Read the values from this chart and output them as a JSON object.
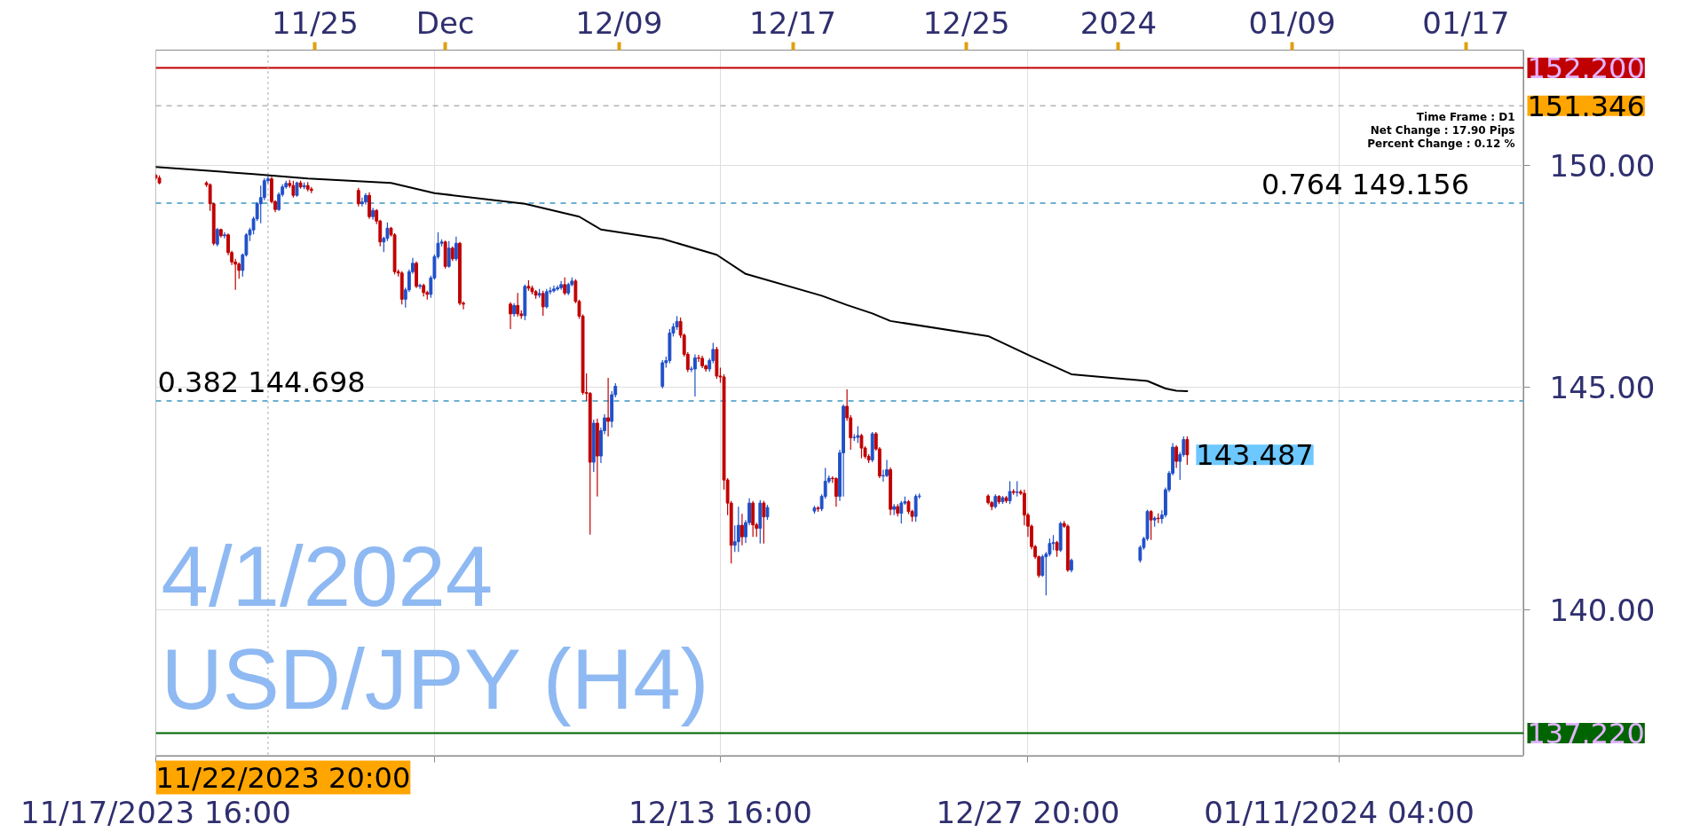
{
  "chart_data": {
    "type": "candlestick",
    "title": "USD/JPY (H4)",
    "subtitle": "4/1/2024",
    "x": [
      "2023-11-17T16:00",
      "2023-11-17T20:00",
      "2023-11-20T00:00",
      "2023-11-20T04:00",
      "2023-11-20T08:00",
      "2023-11-20T12:00",
      "2023-11-20T16:00",
      "2023-11-20T20:00",
      "2023-11-21T00:00",
      "2023-11-21T04:00",
      "2023-11-21T08:00",
      "2023-11-21T12:00",
      "2023-11-21T16:00",
      "2023-11-21T20:00",
      "2023-11-22T00:00",
      "2023-11-22T04:00",
      "2023-11-22T08:00",
      "2023-11-22T12:00",
      "2023-11-22T16:00",
      "2023-11-22T20:00",
      "2023-11-23T00:00",
      "2023-11-23T04:00",
      "2023-11-23T08:00",
      "2023-11-23T12:00",
      "2023-11-23T16:00",
      "2023-11-23T20:00",
      "2023-11-24T00:00",
      "2023-11-24T04:00",
      "2023-11-24T08:00",
      "2023-11-24T12:00",
      "2023-11-24T16:00",
      "2023-11-24T20:00",
      "2023-11-27T00:00",
      "2023-11-27T04:00",
      "2023-11-27T08:00",
      "2023-11-27T12:00",
      "2023-11-27T16:00",
      "2023-11-27T20:00",
      "2023-11-28T00:00",
      "2023-11-28T04:00",
      "2023-11-28T08:00",
      "2023-11-28T12:00",
      "2023-11-28T16:00",
      "2023-11-28T20:00",
      "2023-11-29T00:00",
      "2023-11-29T04:00",
      "2023-11-29T08:00",
      "2023-11-29T12:00",
      "2023-11-29T16:00",
      "2023-11-29T20:00",
      "2023-11-30T00:00",
      "2023-11-30T04:00",
      "2023-11-30T08:00",
      "2023-11-30T12:00",
      "2023-11-30T16:00",
      "2023-11-30T20:00",
      "2023-12-01T00:00",
      "2023-12-01T04:00",
      "2023-12-01T08:00",
      "2023-12-01T12:00",
      "2023-12-01T16:00",
      "2023-12-01T20:00",
      "2023-12-04T00:00",
      "2023-12-04T04:00",
      "2023-12-04T08:00",
      "2023-12-04T12:00",
      "2023-12-04T16:00",
      "2023-12-04T20:00",
      "2023-12-05T00:00",
      "2023-12-05T04:00",
      "2023-12-05T08:00",
      "2023-12-05T12:00",
      "2023-12-05T16:00",
      "2023-12-05T20:00",
      "2023-12-06T00:00",
      "2023-12-06T04:00",
      "2023-12-06T08:00",
      "2023-12-06T12:00",
      "2023-12-06T16:00",
      "2023-12-06T20:00",
      "2023-12-07T00:00",
      "2023-12-07T04:00",
      "2023-12-07T08:00",
      "2023-12-07T12:00",
      "2023-12-07T16:00",
      "2023-12-07T20:00",
      "2023-12-08T00:00",
      "2023-12-08T04:00",
      "2023-12-08T08:00",
      "2023-12-08T12:00",
      "2023-12-08T16:00",
      "2023-12-08T20:00",
      "2023-12-11T00:00",
      "2023-12-11T04:00",
      "2023-12-11T08:00",
      "2023-12-11T12:00",
      "2023-12-11T16:00",
      "2023-12-11T20:00",
      "2023-12-12T00:00",
      "2023-12-12T04:00",
      "2023-12-12T08:00",
      "2023-12-12T12:00",
      "2023-12-12T16:00",
      "2023-12-12T20:00",
      "2023-12-13T00:00",
      "2023-12-13T04:00",
      "2023-12-13T08:00",
      "2023-12-13T12:00",
      "2023-12-13T16:00",
      "2023-12-13T20:00",
      "2023-12-14T00:00",
      "2023-12-14T04:00",
      "2023-12-14T08:00",
      "2023-12-14T12:00",
      "2023-12-14T16:00",
      "2023-12-14T20:00",
      "2023-12-15T00:00",
      "2023-12-15T04:00",
      "2023-12-15T08:00",
      "2023-12-15T12:00",
      "2023-12-15T16:00",
      "2023-12-15T20:00",
      "2023-12-18T00:00",
      "2023-12-18T04:00",
      "2023-12-18T08:00",
      "2023-12-18T12:00",
      "2023-12-18T16:00",
      "2023-12-18T20:00",
      "2023-12-19T00:00",
      "2023-12-19T04:00",
      "2023-12-19T08:00",
      "2023-12-19T12:00",
      "2023-12-19T16:00",
      "2023-12-19T20:00",
      "2023-12-20T00:00",
      "2023-12-20T04:00",
      "2023-12-20T08:00",
      "2023-12-20T12:00",
      "2023-12-20T16:00",
      "2023-12-20T20:00",
      "2023-12-21T00:00",
      "2023-12-21T04:00",
      "2023-12-21T08:00",
      "2023-12-21T12:00",
      "2023-12-21T16:00",
      "2023-12-21T20:00",
      "2023-12-22T00:00",
      "2023-12-22T04:00",
      "2023-12-22T08:00",
      "2023-12-22T12:00",
      "2023-12-22T16:00",
      "2023-12-22T20:00",
      "2023-12-26T00:00",
      "2023-12-26T04:00",
      "2023-12-26T08:00",
      "2023-12-26T12:00",
      "2023-12-26T16:00",
      "2023-12-26T20:00",
      "2023-12-27T00:00",
      "2023-12-27T04:00",
      "2023-12-27T08:00",
      "2023-12-27T12:00",
      "2023-12-27T16:00",
      "2023-12-27T20:00",
      "2023-12-28T00:00",
      "2023-12-28T04:00",
      "2023-12-28T08:00",
      "2023-12-28T12:00",
      "2023-12-28T16:00",
      "2023-12-28T20:00",
      "2023-12-29T00:00",
      "2023-12-29T04:00",
      "2023-12-29T08:00",
      "2023-12-29T12:00",
      "2023-12-29T16:00",
      "2023-12-29T20:00",
      "2024-01-02T00:00",
      "2024-01-02T04:00",
      "2024-01-02T08:00",
      "2024-01-02T12:00",
      "2024-01-02T16:00",
      "2024-01-02T20:00",
      "2024-01-03T00:00",
      "2024-01-03T04:00",
      "2024-01-03T08:00",
      "2024-01-03T12:00",
      "2024-01-03T16:00",
      "2024-01-03T20:00",
      "2024-01-04T00:00",
      "2024-01-04T04:00"
    ],
    "ohlc": [
      [
        149.78,
        149.82,
        149.68,
        149.72
      ],
      [
        149.72,
        149.78,
        149.58,
        149.61
      ],
      [
        149.61,
        149.65,
        149.52,
        149.57
      ],
      [
        149.57,
        149.6,
        148.98,
        149.14
      ],
      [
        149.14,
        149.16,
        148.2,
        148.25
      ],
      [
        148.23,
        148.6,
        148.18,
        148.56
      ],
      [
        148.56,
        148.58,
        148.38,
        148.42
      ],
      [
        148.42,
        148.5,
        148.36,
        148.44
      ],
      [
        148.44,
        148.47,
        147.98,
        148.04
      ],
      [
        148.04,
        148.08,
        147.76,
        147.83
      ],
      [
        147.83,
        147.9,
        147.2,
        147.78
      ],
      [
        147.78,
        147.82,
        147.45,
        147.64
      ],
      [
        147.64,
        148.02,
        147.5,
        147.99
      ],
      [
        147.99,
        148.48,
        147.95,
        148.44
      ],
      [
        148.44,
        148.6,
        148.3,
        148.55
      ],
      [
        148.55,
        148.85,
        148.45,
        148.8
      ],
      [
        148.8,
        149.18,
        148.75,
        149.14
      ],
      [
        149.14,
        149.55,
        148.7,
        149.28
      ],
      [
        149.28,
        149.72,
        149.22,
        149.66
      ],
      [
        149.66,
        149.78,
        149.6,
        149.7
      ],
      [
        149.7,
        149.75,
        149.15,
        149.19
      ],
      [
        149.19,
        149.22,
        148.95,
        149.01
      ],
      [
        149.01,
        149.4,
        148.98,
        149.35
      ],
      [
        149.35,
        149.58,
        149.3,
        149.52
      ],
      [
        149.52,
        149.66,
        149.48,
        149.6
      ],
      [
        149.6,
        149.68,
        149.5,
        149.55
      ],
      [
        149.55,
        149.66,
        149.28,
        149.33
      ],
      [
        149.33,
        149.64,
        149.3,
        149.61
      ],
      [
        149.61,
        149.66,
        149.48,
        149.52
      ],
      [
        149.52,
        149.62,
        149.47,
        149.55
      ],
      [
        149.55,
        149.63,
        149.42,
        149.47
      ],
      [
        149.47,
        149.52,
        149.38,
        149.44
      ],
      [
        149.44,
        149.5,
        149.08,
        149.14
      ],
      [
        149.14,
        149.28,
        149.08,
        149.18
      ],
      [
        149.18,
        149.38,
        149.12,
        149.33
      ],
      [
        149.33,
        149.4,
        148.8,
        148.85
      ],
      [
        148.85,
        149.05,
        148.78,
        148.99
      ],
      [
        148.99,
        149.02,
        148.68,
        148.75
      ],
      [
        148.75,
        148.78,
        148.18,
        148.28
      ],
      [
        148.28,
        148.4,
        148.05,
        148.36
      ],
      [
        148.36,
        148.72,
        148.3,
        148.59
      ],
      [
        148.59,
        148.62,
        148.4,
        148.44
      ],
      [
        148.44,
        148.48,
        147.55,
        147.61
      ],
      [
        147.61,
        147.66,
        147.5,
        147.58
      ],
      [
        147.58,
        147.62,
        146.87,
        146.99
      ],
      [
        146.99,
        147.25,
        146.8,
        147.2
      ],
      [
        147.2,
        147.66,
        147.15,
        147.61
      ],
      [
        147.61,
        147.92,
        147.56,
        147.8
      ],
      [
        147.8,
        147.84,
        147.24,
        147.28
      ],
      [
        147.28,
        147.34,
        147.22,
        147.3
      ],
      [
        147.3,
        147.34,
        147.05,
        147.14
      ],
      [
        147.14,
        147.18,
        146.98,
        147.1
      ],
      [
        147.1,
        147.52,
        147.02,
        147.47
      ],
      [
        147.47,
        148.0,
        147.43,
        147.95
      ],
      [
        147.95,
        148.5,
        147.9,
        148.25
      ],
      [
        148.25,
        148.34,
        148.18,
        148.28
      ],
      [
        148.28,
        148.31,
        147.68,
        147.73
      ],
      [
        147.73,
        148.3,
        147.7,
        148.14
      ],
      [
        148.14,
        148.18,
        147.85,
        147.9
      ],
      [
        147.9,
        148.4,
        147.85,
        148.25
      ],
      [
        148.25,
        148.28,
        146.85,
        146.9
      ],
      [
        146.9,
        146.94,
        146.76,
        146.88
      ],
      [
        146.88,
        146.92,
        146.32,
        146.66
      ],
      [
        146.66,
        146.9,
        146.6,
        146.85
      ],
      [
        146.85,
        147.13,
        146.6,
        146.66
      ],
      [
        146.66,
        146.74,
        146.55,
        146.62
      ],
      [
        146.62,
        147.32,
        146.52,
        147.28
      ],
      [
        147.28,
        147.42,
        147.18,
        147.24
      ],
      [
        147.24,
        147.3,
        147.1,
        147.16
      ],
      [
        147.16,
        147.2,
        147.0,
        147.08
      ],
      [
        147.08,
        147.22,
        147.02,
        147.12
      ],
      [
        147.12,
        147.18,
        146.62,
        146.82
      ],
      [
        146.82,
        147.22,
        146.78,
        147.16
      ],
      [
        147.16,
        147.26,
        147.1,
        147.18
      ],
      [
        147.18,
        147.3,
        147.14,
        147.22
      ],
      [
        147.22,
        147.3,
        147.18,
        147.25
      ],
      [
        147.25,
        147.4,
        147.2,
        147.32
      ],
      [
        147.32,
        147.48,
        147.08,
        147.13
      ],
      [
        147.13,
        147.36,
        147.08,
        147.32
      ],
      [
        147.32,
        147.48,
        147.28,
        147.4
      ],
      [
        147.4,
        147.44,
        146.9,
        146.94
      ],
      [
        146.94,
        146.98,
        146.55,
        146.61
      ],
      [
        146.61,
        146.65,
        144.84,
        144.89
      ],
      [
        144.89,
        145.32,
        144.7,
        144.87
      ],
      [
        144.87,
        144.9,
        141.69,
        143.32
      ],
      [
        143.32,
        144.28,
        143.1,
        144.2
      ],
      [
        144.2,
        144.3,
        142.55,
        143.46
      ],
      [
        143.46,
        144.1,
        143.3,
        144.03
      ],
      [
        144.03,
        144.4,
        143.95,
        144.32
      ],
      [
        144.32,
        145.22,
        143.9,
        144.24
      ],
      [
        144.24,
        144.92,
        144.1,
        144.84
      ],
      [
        144.84,
        145.1,
        144.78,
        145.03
      ],
      [
        145.03,
        145.62,
        144.98,
        145.56
      ],
      [
        145.56,
        145.7,
        145.45,
        145.61
      ],
      [
        145.61,
        146.32,
        145.55,
        146.23
      ],
      [
        146.23,
        146.45,
        146.15,
        146.37
      ],
      [
        146.37,
        146.61,
        146.3,
        146.49
      ],
      [
        146.49,
        146.58,
        146.12,
        146.18
      ],
      [
        146.18,
        146.22,
        145.7,
        145.75
      ],
      [
        145.75,
        145.8,
        145.35,
        145.41
      ],
      [
        145.41,
        145.48,
        145.35,
        145.42
      ],
      [
        145.42,
        145.75,
        144.8,
        145.67
      ],
      [
        145.67,
        145.74,
        145.58,
        145.66
      ],
      [
        145.66,
        145.72,
        145.44,
        145.49
      ],
      [
        145.49,
        145.52,
        145.36,
        145.42
      ],
      [
        145.42,
        145.66,
        145.36,
        145.61
      ],
      [
        145.61,
        146.01,
        145.55,
        145.86
      ],
      [
        145.86,
        145.92,
        145.2,
        145.26
      ],
      [
        145.26,
        145.45,
        145.11,
        145.24
      ],
      [
        145.24,
        145.3,
        142.7,
        142.92
      ],
      [
        142.92,
        142.96,
        142.13,
        142.4
      ],
      [
        142.4,
        142.45,
        141.04,
        141.45
      ],
      [
        141.45,
        141.9,
        141.3,
        141.53
      ],
      [
        141.53,
        142.32,
        141.3,
        141.9
      ],
      [
        141.9,
        142.16,
        141.45,
        141.64
      ],
      [
        141.64,
        142.02,
        141.5,
        141.96
      ],
      [
        141.96,
        142.51,
        141.9,
        142.4
      ],
      [
        142.4,
        142.45,
        141.64,
        141.91
      ],
      [
        141.91,
        141.96,
        141.64,
        141.83
      ],
      [
        141.83,
        142.47,
        141.49,
        142.4
      ],
      [
        142.4,
        142.45,
        141.49,
        142.09
      ],
      [
        142.09,
        142.36,
        142.02,
        142.3
      ],
      [
        142.22,
        142.34,
        142.16,
        142.29
      ],
      [
        142.29,
        142.33,
        142.2,
        142.27
      ],
      [
        142.27,
        142.6,
        142.22,
        142.55
      ],
      [
        142.55,
        143.19,
        142.5,
        142.89
      ],
      [
        142.89,
        143.02,
        142.84,
        142.96
      ],
      [
        142.96,
        143.0,
        142.85,
        142.95
      ],
      [
        142.95,
        142.98,
        142.32,
        142.55
      ],
      [
        142.55,
        143.6,
        142.45,
        143.53
      ],
      [
        143.53,
        144.62,
        142.55,
        144.58
      ],
      [
        144.58,
        144.96,
        144.25,
        144.32
      ],
      [
        144.32,
        144.38,
        143.6,
        143.87
      ],
      [
        143.87,
        143.95,
        143.8,
        143.88
      ],
      [
        143.88,
        144.13,
        143.75,
        143.92
      ],
      [
        143.92,
        143.96,
        143.41,
        143.64
      ],
      [
        143.64,
        143.68,
        143.4,
        143.45
      ],
      [
        143.45,
        143.5,
        143.3,
        143.37
      ],
      [
        143.37,
        144.0,
        143.32,
        143.96
      ],
      [
        143.96,
        144.0,
        143.58,
        143.62
      ],
      [
        143.62,
        143.66,
        142.96,
        143.01
      ],
      [
        143.01,
        143.15,
        142.88,
        143.02
      ],
      [
        143.02,
        143.37,
        142.98,
        143.15
      ],
      [
        143.15,
        143.2,
        142.13,
        142.26
      ],
      [
        142.26,
        142.38,
        142.13,
        142.32
      ],
      [
        142.32,
        142.38,
        142.1,
        142.17
      ],
      [
        142.17,
        142.45,
        141.94,
        142.4
      ],
      [
        142.4,
        142.55,
        142.36,
        142.43
      ],
      [
        142.43,
        142.47,
        142.15,
        142.21
      ],
      [
        142.21,
        142.25,
        141.98,
        142.1
      ],
      [
        142.1,
        142.6,
        141.98,
        142.55
      ],
      [
        142.55,
        142.62,
        142.5,
        142.56
      ],
      [
        142.56,
        142.6,
        142.37,
        142.41
      ],
      [
        142.41,
        142.45,
        142.24,
        142.32
      ],
      [
        142.32,
        142.6,
        142.28,
        142.55
      ],
      [
        142.55,
        142.58,
        142.38,
        142.43
      ],
      [
        142.43,
        142.56,
        142.38,
        142.52
      ],
      [
        142.52,
        142.56,
        142.4,
        142.45
      ],
      [
        142.45,
        142.89,
        142.38,
        142.66
      ],
      [
        142.66,
        142.71,
        142.59,
        142.64
      ],
      [
        142.64,
        142.89,
        142.55,
        142.65
      ],
      [
        142.65,
        142.7,
        142.58,
        142.62
      ],
      [
        142.62,
        142.7,
        141.9,
        142.13
      ],
      [
        142.13,
        142.18,
        141.64,
        141.88
      ],
      [
        141.88,
        141.92,
        141.36,
        141.42
      ],
      [
        141.42,
        141.46,
        141.14,
        141.19
      ],
      [
        141.19,
        141.22,
        140.72,
        140.77
      ],
      [
        140.77,
        141.24,
        140.74,
        141.19
      ],
      [
        141.19,
        141.3,
        140.32,
        141.25
      ],
      [
        141.25,
        141.6,
        141.2,
        141.49
      ],
      [
        141.49,
        141.68,
        141.34,
        141.51
      ],
      [
        141.51,
        141.55,
        141.19,
        141.34
      ],
      [
        141.34,
        141.98,
        141.3,
        141.94
      ],
      [
        141.94,
        142.0,
        141.84,
        141.88
      ],
      [
        141.88,
        141.92,
        140.85,
        140.89
      ],
      [
        140.89,
        141.15,
        140.84,
        141.11
      ],
      [
        141.11,
        141.45,
        141.06,
        141.4
      ],
      [
        141.4,
        141.64,
        141.35,
        141.6
      ],
      [
        141.6,
        142.25,
        141.55,
        142.21
      ],
      [
        142.21,
        142.24,
        141.57,
        142.02
      ],
      [
        142.02,
        142.1,
        141.87,
        142.06
      ],
      [
        142.06,
        142.17,
        141.95,
        142.05
      ],
      [
        142.05,
        142.24,
        141.94,
        142.13
      ],
      [
        142.13,
        142.75,
        142.08,
        142.7
      ],
      [
        142.7,
        143.12,
        142.65,
        143.07
      ],
      [
        143.07,
        143.75,
        143.02,
        143.66
      ],
      [
        143.66,
        143.7,
        143.19,
        143.34
      ],
      [
        143.34,
        143.55,
        142.92,
        143.49
      ],
      [
        143.49,
        143.9,
        143.44,
        143.83
      ],
      [
        143.83,
        143.9,
        143.26,
        143.487
      ]
    ],
    "colors": [
      "#c00000",
      "#c00000",
      "#c00000",
      "#c00000",
      "#c00000",
      "#2050c8",
      "#c00000",
      "#2050c8",
      "#c00000",
      "#c00000",
      "#c00000",
      "#c00000",
      "#2050c8",
      "#2050c8",
      "#2050c8",
      "#2050c8",
      "#2050c8",
      "#2050c8",
      "#2050c8",
      "#2050c8",
      "#c00000",
      "#c00000",
      "#2050c8",
      "#2050c8",
      "#2050c8",
      "#c00000",
      "#c00000",
      "#2050c8",
      "#c00000",
      "#2050c8",
      "#c00000",
      "#c00000",
      "#c00000",
      "#2050c8",
      "#2050c8",
      "#c00000",
      "#2050c8",
      "#c00000",
      "#c00000",
      "#2050c8",
      "#2050c8",
      "#c00000",
      "#c00000",
      "#c00000",
      "#c00000",
      "#2050c8",
      "#2050c8",
      "#2050c8",
      "#c00000",
      "#2050c8",
      "#c00000",
      "#c00000",
      "#2050c8",
      "#2050c8",
      "#2050c8",
      "#2050c8",
      "#c00000",
      "#2050c8",
      "#c00000",
      "#2050c8",
      "#c00000",
      "#c00000",
      "#c00000",
      "#2050c8",
      "#c00000",
      "#c00000",
      "#2050c8",
      "#c00000",
      "#c00000",
      "#c00000",
      "#2050c8",
      "#c00000",
      "#2050c8",
      "#2050c8",
      "#2050c8",
      "#2050c8",
      "#2050c8",
      "#c00000",
      "#2050c8",
      "#2050c8",
      "#c00000",
      "#c00000",
      "#c00000",
      "#c00000",
      "#c00000",
      "#2050c8",
      "#c00000",
      "#2050c8",
      "#2050c8",
      "#c00000",
      "#2050c8",
      "#2050c8",
      "#2050c8",
      "#2050c8",
      "#2050c8",
      "#2050c8",
      "#2050c8",
      "#c00000",
      "#c00000",
      "#c00000",
      "#2050c8",
      "#2050c8",
      "#c00000",
      "#c00000",
      "#c00000",
      "#2050c8",
      "#2050c8",
      "#c00000",
      "#c00000",
      "#c00000",
      "#c00000",
      "#c00000",
      "#2050c8",
      "#2050c8",
      "#c00000",
      "#2050c8",
      "#2050c8",
      "#c00000",
      "#c00000",
      "#2050c8",
      "#c00000",
      "#2050c8",
      "#2050c8",
      "#c00000",
      "#2050c8",
      "#2050c8",
      "#2050c8",
      "#c00000",
      "#c00000",
      "#2050c8",
      "#2050c8",
      "#c00000",
      "#c00000",
      "#2050c8",
      "#2050c8",
      "#c00000",
      "#c00000",
      "#c00000",
      "#2050c8",
      "#c00000",
      "#c00000",
      "#2050c8",
      "#2050c8",
      "#c00000",
      "#2050c8",
      "#c00000",
      "#2050c8",
      "#2050c8",
      "#c00000",
      "#c00000",
      "#2050c8",
      "#2050c8",
      "#c00000",
      "#c00000",
      "#2050c8",
      "#c00000",
      "#2050c8",
      "#c00000",
      "#2050c8",
      "#c00000",
      "#2050c8",
      "#c00000",
      "#c00000",
      "#c00000",
      "#c00000",
      "#c00000",
      "#c00000",
      "#2050c8",
      "#2050c8",
      "#2050c8",
      "#2050c8",
      "#c00000",
      "#2050c8",
      "#c00000",
      "#c00000",
      "#2050c8",
      "#2050c8",
      "#2050c8",
      "#2050c8",
      "#c00000",
      "#2050c8",
      "#c00000",
      "#2050c8",
      "#2050c8",
      "#2050c8",
      "#2050c8",
      "#c00000",
      "#2050c8",
      "#2050c8",
      "#c00000"
    ],
    "series": [
      {
        "type": "line",
        "color": "#000000",
        "x": [
          "2023-11-17T16:00",
          "2023-11-22T04:00",
          "2023-11-24T16:00",
          "2023-11-28T12:00",
          "2023-11-30T12:00",
          "2023-12-04T16:00",
          "2023-12-07T04:00",
          "2023-12-08T04:00",
          "2023-12-11T00:00",
          "2023-12-13T12:00",
          "2023-12-14T20:00",
          "2023-12-18T08:00",
          "2023-12-19T12:00",
          "2023-12-20T16:00",
          "2023-12-21T12:00",
          "2023-12-26T00:00",
          "2023-12-27T00:00",
          "2023-12-28T00:00",
          "2023-12-28T20:00",
          "2023-12-29T20:00",
          "2024-01-02T08:00",
          "2024-01-03T04:00",
          "2024-01-03T16:00",
          "2024-01-04T04:00"
        ],
        "values": [
          149.97,
          149.81,
          149.71,
          149.61,
          149.38,
          149.14,
          148.85,
          148.56,
          148.35,
          147.99,
          147.56,
          147.07,
          146.86,
          146.67,
          146.5,
          146.16,
          145.93,
          145.7,
          145.52,
          145.3,
          145.15,
          144.98,
          144.93,
          144.92
        ]
      }
    ],
    "xlim": [
      "2023-11-17T16:00",
      "2024-01-19T16:00"
    ],
    "xticks": [
      {
        "value": "2023-11-17T16:00",
        "label": "11/17/2023 16:00"
      },
      {
        "value": "2023-11-30T12:00",
        "label": null
      },
      {
        "value": "2023-12-13T16:00",
        "label": "12/13 16:00"
      },
      {
        "value": "2023-12-27T20:00",
        "label": "12/27 20:00"
      },
      {
        "value": "2024-01-11T04:00",
        "label": "01/11/2024 04:00"
      }
    ],
    "x2lim": [
      "2023-11-17T16:00",
      "2024-01-19T16:00"
    ],
    "x2ticks": [
      {
        "value": "2023-11-25",
        "label": "11/25"
      },
      {
        "value": "2023-12-01",
        "label": "Dec"
      },
      {
        "value": "2023-12-09",
        "label": "12/09"
      },
      {
        "value": "2023-12-17",
        "label": "12/17"
      },
      {
        "value": "2023-12-25",
        "label": "12/25"
      },
      {
        "value": "2024-01-01",
        "label": "2024"
      },
      {
        "value": "2024-01-09",
        "label": "01/09"
      },
      {
        "value": "2024-01-17",
        "label": "01/17"
      }
    ],
    "ylim": [
      136.7,
      152.6
    ],
    "yticks": [
      {
        "value": 140,
        "label": "140.00"
      },
      {
        "value": 145,
        "label": "145.00"
      },
      {
        "value": 150,
        "label": "150.00"
      }
    ],
    "ref_lines": [
      {
        "axis": "y",
        "value": 152.2,
        "label": "152.200",
        "color": "#c00000"
      },
      {
        "axis": "y",
        "value": 151.346,
        "label": "151.346",
        "line_style": "dashed"
      },
      {
        "axis": "y",
        "value": 149.156,
        "color": "#6ab0d0",
        "line_style": "dashed"
      },
      {
        "axis": "y",
        "value": 144.698,
        "color": "#6ab0d0",
        "line_style": "dashed"
      },
      {
        "axis": "y",
        "value": 137.22,
        "label": "137.220",
        "color": "#006400"
      },
      {
        "axis": "x",
        "value": "2023-11-22T20:00",
        "label": "11/22/2023 20:00",
        "line_style": "dotted"
      }
    ],
    "annotations": [
      "Time Frame : D1",
      "Net Change : 17.90 Pips",
      "Percent Change : 0.12 %",
      {
        "text": "0.764 149.156",
        "x": "2024-01-07T12:00",
        "y": 149.156
      },
      {
        "text": "0.382 144.698",
        "x": "2023-11-17T16:00",
        "y": 144.698
      },
      {
        "text": "143.487",
        "x": "2024-01-04T04:00",
        "y": 143.487
      }
    ],
    "grid": true
  }
}
